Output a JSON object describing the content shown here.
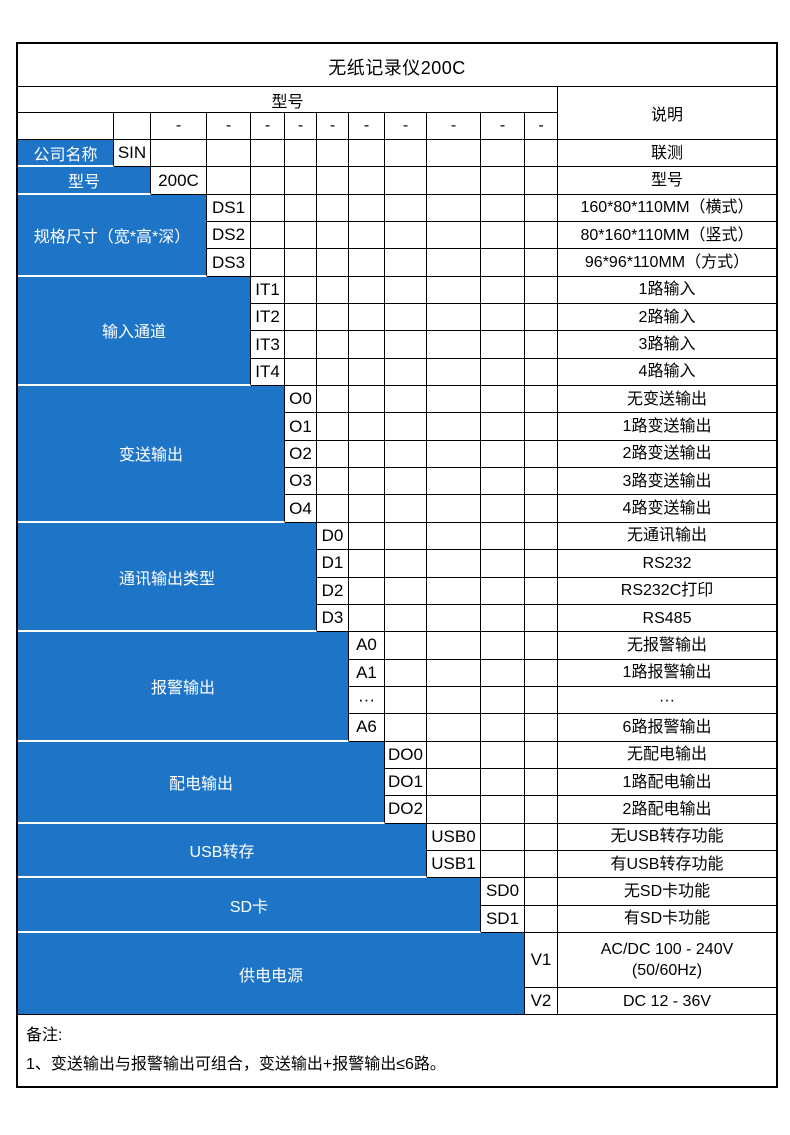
{
  "title": "无纸记录仪200C",
  "header": {
    "model": "型号",
    "description": "说明"
  },
  "separators": [
    "-",
    "-",
    "-",
    "-",
    "-",
    "-",
    "-",
    "-",
    "-",
    "-"
  ],
  "sections": [
    {
      "key": "company-name",
      "label": "公司名称",
      "rows": [
        {
          "code": "SIN",
          "desc": "联测"
        }
      ]
    },
    {
      "key": "model",
      "label": "型号",
      "rows": [
        {
          "code": "200C",
          "desc": "型号"
        }
      ]
    },
    {
      "key": "dimensions",
      "label": "规格尺寸（宽*高*深）",
      "rows": [
        {
          "code": "DS1",
          "desc": "160*80*110MM（横式）"
        },
        {
          "code": "DS2",
          "desc": "80*160*110MM（竖式）"
        },
        {
          "code": "DS3",
          "desc": "96*96*110MM（方式）"
        }
      ]
    },
    {
      "key": "input-channels",
      "label": "输入通道",
      "rows": [
        {
          "code": "IT1",
          "desc": "1路输入"
        },
        {
          "code": "IT2",
          "desc": "2路输入"
        },
        {
          "code": "IT3",
          "desc": "3路输入"
        },
        {
          "code": "IT4",
          "desc": "4路输入"
        }
      ]
    },
    {
      "key": "transmit-output",
      "label": "变送输出",
      "rows": [
        {
          "code": "O0",
          "desc": "无变送输出"
        },
        {
          "code": "O1",
          "desc": "1路变送输出"
        },
        {
          "code": "O2",
          "desc": "2路变送输出"
        },
        {
          "code": "O3",
          "desc": "3路变送输出"
        },
        {
          "code": "O4",
          "desc": "4路变送输出"
        }
      ]
    },
    {
      "key": "comm-output-type",
      "label": "通讯输出类型",
      "rows": [
        {
          "code": "D0",
          "desc": "无通讯输出"
        },
        {
          "code": "D1",
          "desc": "RS232"
        },
        {
          "code": "D2",
          "desc": "RS232C打印"
        },
        {
          "code": "D3",
          "desc": "RS485"
        }
      ]
    },
    {
      "key": "alarm-output",
      "label": "报警输出",
      "rows": [
        {
          "code": "A0",
          "desc": "无报警输出"
        },
        {
          "code": "A1",
          "desc": "1路报警输出"
        },
        {
          "code": "···",
          "desc": "···"
        },
        {
          "code": "A6",
          "desc": "6路报警输出"
        }
      ]
    },
    {
      "key": "distribution-output",
      "label": "配电输出",
      "rows": [
        {
          "code": "DO0",
          "desc": "无配电输出"
        },
        {
          "code": "DO1",
          "desc": "1路配电输出"
        },
        {
          "code": "DO2",
          "desc": "2路配电输出"
        }
      ]
    },
    {
      "key": "usb-transfer",
      "label": "USB转存",
      "rows": [
        {
          "code": "USB0",
          "desc": "无USB转存功能"
        },
        {
          "code": "USB1",
          "desc": "有USB转存功能"
        }
      ]
    },
    {
      "key": "sd-card",
      "label": "SD卡",
      "rows": [
        {
          "code": "SD0",
          "desc": "无SD卡功能"
        },
        {
          "code": "SD1",
          "desc": "有SD卡功能"
        }
      ]
    },
    {
      "key": "power-supply",
      "label": "供电电源",
      "rows": [
        {
          "code": "V1",
          "desc": "AC/DC 100 - 240V\n(50/60Hz)",
          "tall": true
        },
        {
          "code": "V2",
          "desc": "DC 12 - 36V"
        }
      ]
    }
  ],
  "notes": {
    "heading": "备注:",
    "items": [
      "1、变送输出与报警输出可组合，变送输出+报警输出≤6路。"
    ]
  },
  "colors": {
    "accent_blue": "#1E75C8",
    "border": "#000000",
    "label_text": "#FFFFFF"
  }
}
